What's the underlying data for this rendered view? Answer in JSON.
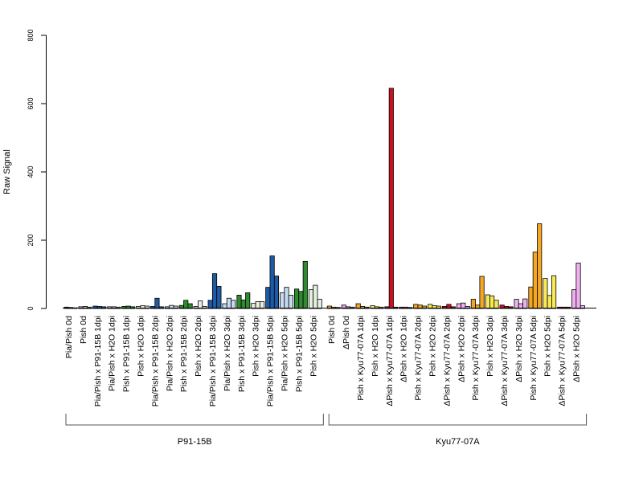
{
  "chart_data": {
    "type": "bar",
    "title": "",
    "ylabel": "Raw Signal",
    "xlabel": "",
    "ylim": [
      0,
      800
    ],
    "yticks": [
      0,
      200,
      400,
      600,
      800
    ],
    "grid": false,
    "legend": "none",
    "bar_outline": "#000000",
    "groups": [
      {
        "label": "P91-15B",
        "categories": [
          {
            "label": "Pia/Pish 0d",
            "values": [
              4,
              3,
              2
            ],
            "colors": [
              "#4d4d4d",
              "#4d4d4d",
              "#4d4d4d"
            ]
          },
          {
            "label": "Pish 0d",
            "values": [
              5,
              6,
              4
            ],
            "colors": [
              "#c9c9c9",
              "#c9c9c9",
              "#c9c9c9"
            ]
          },
          {
            "label": "Pia/Pish x P91-15B 1dpi",
            "values": [
              7,
              6,
              5
            ],
            "colors": [
              "#1f5aa6",
              "#1f5aa6",
              "#1f5aa6"
            ]
          },
          {
            "label": "Pia/Pish x H2O 1dpi",
            "values": [
              5,
              5,
              4
            ],
            "colors": [
              "#c6dbef",
              "#c6dbef",
              "#c6dbef"
            ]
          },
          {
            "label": "Pish x P91-15B 1dpi",
            "values": [
              6,
              7,
              5
            ],
            "colors": [
              "#2e8b2e",
              "#2e8b2e",
              "#2e8b2e"
            ]
          },
          {
            "label": "Pish x H2O 1dpi",
            "values": [
              6,
              8,
              7
            ],
            "colors": [
              "#e3efdf",
              "#e3efdf",
              "#e3efdf"
            ]
          },
          {
            "label": "Pia/Pish x P91-15B 2dpi",
            "values": [
              6,
              30,
              5
            ],
            "colors": [
              "#1f5aa6",
              "#1f5aa6",
              "#1f5aa6"
            ]
          },
          {
            "label": "Pia/Pish x H2O 2dpi",
            "values": [
              5,
              9,
              7
            ],
            "colors": [
              "#c6dbef",
              "#c6dbef",
              "#c6dbef"
            ]
          },
          {
            "label": "Pish x P91-15B 2dpi",
            "values": [
              9,
              24,
              14
            ],
            "colors": [
              "#2e8b2e",
              "#2e8b2e",
              "#2e8b2e"
            ]
          },
          {
            "label": "Pish x H2O 2dpi",
            "values": [
              6,
              22,
              6
            ],
            "colors": [
              "#e3efdf",
              "#e3efdf",
              "#e3efdf"
            ]
          },
          {
            "label": "Pia/Pish x P91-15B 3dpi",
            "values": [
              24,
              102,
              65
            ],
            "colors": [
              "#1f5aa6",
              "#1f5aa6",
              "#1f5aa6"
            ]
          },
          {
            "label": "Pia/Pish x H2O 3dpi",
            "values": [
              14,
              30,
              24
            ],
            "colors": [
              "#c6dbef",
              "#c6dbef",
              "#c6dbef"
            ]
          },
          {
            "label": "Pish x P91-15B 3dpi",
            "values": [
              39,
              25,
              46
            ],
            "colors": [
              "#2e8b2e",
              "#2e8b2e",
              "#2e8b2e"
            ]
          },
          {
            "label": "Pish x H2O 3dpi",
            "values": [
              15,
              20,
              20
            ],
            "colors": [
              "#e3efdf",
              "#e3efdf",
              "#e3efdf"
            ]
          },
          {
            "label": "Pia/Pish x P91-15B 5dpi",
            "values": [
              62,
              154,
              95
            ],
            "colors": [
              "#1f5aa6",
              "#1f5aa6",
              "#1f5aa6"
            ]
          },
          {
            "label": "Pia/Pish x H2O 5dpi",
            "values": [
              46,
              62,
              39
            ],
            "colors": [
              "#c6dbef",
              "#c6dbef",
              "#c6dbef"
            ]
          },
          {
            "label": "Pish x P91-15B 5dpi",
            "values": [
              57,
              50,
              138
            ],
            "colors": [
              "#2e8b2e",
              "#2e8b2e",
              "#2e8b2e"
            ]
          },
          {
            "label": "Pish x H2O 5dpi",
            "values": [
              55,
              68,
              27
            ],
            "colors": [
              "#e3efdf",
              "#e3efdf",
              "#e3efdf"
            ]
          }
        ]
      },
      {
        "label": "Kyu77-07A",
        "categories": [
          {
            "label": "Pish 0d",
            "values": [
              7,
              4,
              3
            ],
            "colors": [
              "#f0b43c",
              "#f0b43c",
              "#f0b43c"
            ]
          },
          {
            "label": "ΔPish 0d",
            "values": [
              10,
              5,
              4
            ],
            "colors": [
              "#e8a0e8",
              "#e8a0e8",
              "#e8a0e8"
            ]
          },
          {
            "label": "Pish x Kyu77-07A 1dpi",
            "values": [
              14,
              6,
              4
            ],
            "colors": [
              "#f5a623",
              "#f5a623",
              "#f5a623"
            ]
          },
          {
            "label": "Pish x H2O 1dpi",
            "values": [
              8,
              5,
              4
            ],
            "colors": [
              "#f7e95a",
              "#f7e95a",
              "#f7e95a"
            ]
          },
          {
            "label": "ΔPish x Kyu77-07A 1dpi",
            "values": [
              5,
              645,
              4
            ],
            "colors": [
              "#cc1020",
              "#cc1020",
              "#cc1020"
            ]
          },
          {
            "label": "ΔPish x H2O 1dpi",
            "values": [
              4,
              4,
              3
            ],
            "colors": [
              "#d060d0",
              "#d060d0",
              "#d060d0"
            ]
          },
          {
            "label": "Pish x Kyu77-07A 2dpi",
            "values": [
              12,
              10,
              7
            ],
            "colors": [
              "#f5a623",
              "#f5a623",
              "#f5a623"
            ]
          },
          {
            "label": "Pish x H2O 2dpi",
            "values": [
              12,
              8,
              7
            ],
            "colors": [
              "#f7e95a",
              "#f7e95a",
              "#f7e95a"
            ]
          },
          {
            "label": "ΔPish x Kyu77-07A 2dpi",
            "values": [
              6,
              12,
              5
            ],
            "colors": [
              "#cc1020",
              "#cc1020",
              "#cc1020"
            ]
          },
          {
            "label": "ΔPish x H2O 2dpi",
            "values": [
              14,
              16,
              6
            ],
            "colors": [
              "#f0b0f0",
              "#f0b0f0",
              "#f0b0f0"
            ]
          },
          {
            "label": "Pish x Kyu77-07A 3dpi",
            "values": [
              27,
              10,
              94
            ],
            "colors": [
              "#f5a623",
              "#f5a623",
              "#f5a623"
            ]
          },
          {
            "label": "Pish x H2O 3dpi",
            "values": [
              40,
              37,
              24
            ],
            "colors": [
              "#f7e95a",
              "#f7e95a",
              "#f7e95a"
            ]
          },
          {
            "label": "ΔPish x Kyu77-07A 3dpi",
            "values": [
              10,
              6,
              5
            ],
            "colors": [
              "#cc1020",
              "#cc1020",
              "#cc1020"
            ]
          },
          {
            "label": "ΔPish x H2O 3dpi",
            "values": [
              27,
              14,
              28
            ],
            "colors": [
              "#f0b0f0",
              "#f0b0f0",
              "#f0b0f0"
            ]
          },
          {
            "label": "Pish x Kyu77-07A 5dpi",
            "values": [
              63,
              165,
              248
            ],
            "colors": [
              "#f5a623",
              "#f5a623",
              "#f5a623"
            ]
          },
          {
            "label": "Pish x H2O 5dpi",
            "values": [
              88,
              38,
              96
            ],
            "colors": [
              "#f7e95a",
              "#f7e95a",
              "#f7e95a"
            ]
          },
          {
            "label": "ΔPish x Kyu77-07A 5dpi",
            "values": [
              4,
              4,
              4
            ],
            "colors": [
              "#cc1020",
              "#cc1020",
              "#cc1020"
            ]
          },
          {
            "label": "ΔPish x H2O 5dpi",
            "values": [
              55,
              133,
              8
            ],
            "colors": [
              "#f0b0f0",
              "#f0b0f0",
              "#f0b0f0"
            ]
          }
        ]
      }
    ]
  }
}
